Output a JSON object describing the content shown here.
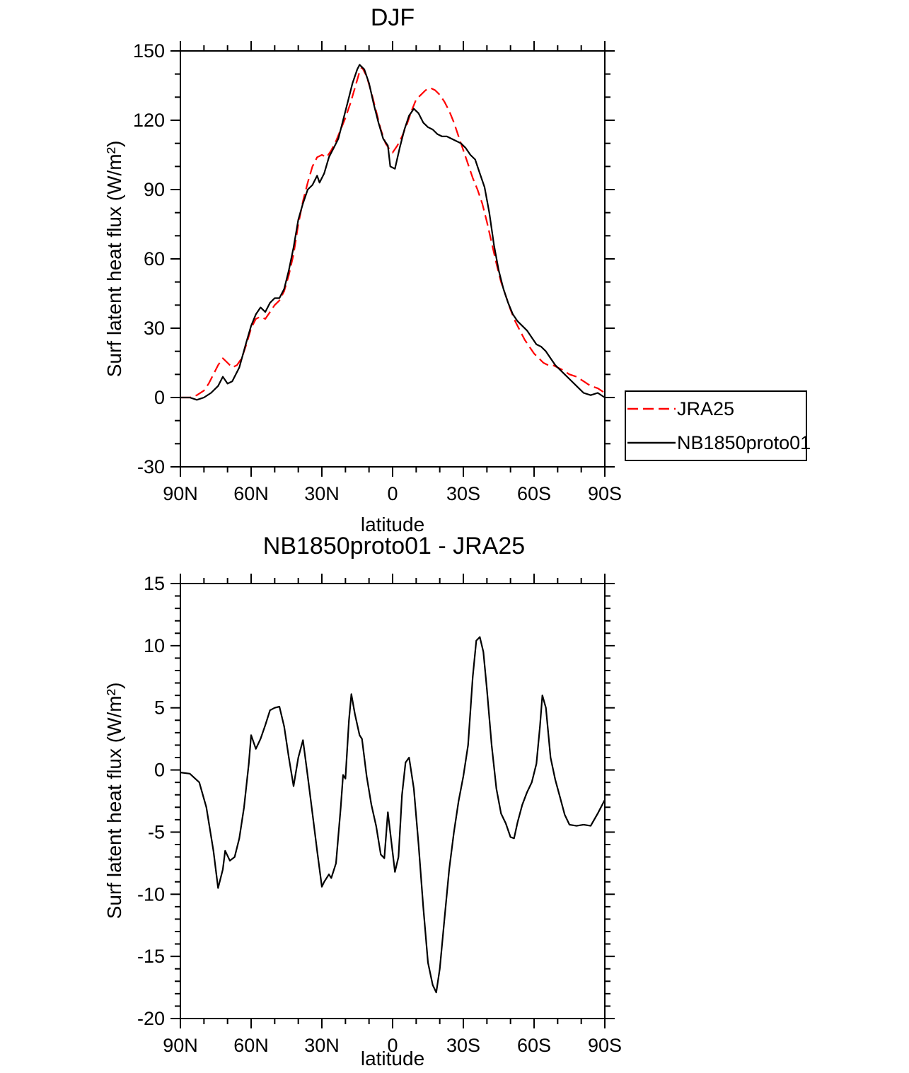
{
  "chart_data": [
    {
      "type": "line",
      "title": "DJF",
      "xlabel": "latitude",
      "ylabel": "Surf latent heat flux (W/m²)",
      "xlim": [
        90,
        -90
      ],
      "ylim": [
        -30,
        150
      ],
      "grid": false,
      "xticks": {
        "values": [
          90,
          60,
          30,
          0,
          -30,
          -60,
          -90
        ],
        "labels": [
          "90N",
          "60N",
          "30N",
          "0",
          "30S",
          "60S",
          "90S"
        ],
        "minor_step": 10
      },
      "yticks": {
        "values": [
          -30,
          0,
          30,
          60,
          90,
          120,
          150
        ],
        "labels": [
          "-30",
          "0",
          "30",
          "60",
          "90",
          "120",
          "150"
        ],
        "minor_step": 10
      },
      "legend": {
        "position": "outside-right-bottom",
        "entries": [
          "JRA25",
          "NB1850proto01"
        ]
      },
      "series": [
        {
          "name": "JRA25",
          "color": "#ff0000",
          "style": "dashed",
          "x": [
            90,
            86,
            83,
            80,
            78,
            76,
            74,
            72,
            70,
            68,
            66,
            64,
            62,
            60,
            58,
            56,
            54,
            52,
            50,
            48,
            46,
            44,
            42,
            40,
            38,
            36,
            34,
            32,
            30,
            28,
            26,
            24,
            22,
            20,
            18,
            16,
            14,
            13,
            11,
            9,
            7,
            5,
            3,
            1,
            0,
            -2,
            -4,
            -6,
            -8,
            -10,
            -12,
            -14,
            -16,
            -18,
            -20,
            -22,
            -24,
            -26,
            -28,
            -30,
            -32,
            -34,
            -36,
            -38,
            -40,
            -42,
            -44,
            -46,
            -48,
            -50,
            -52,
            -54,
            -56,
            -58,
            -60,
            -62,
            -64,
            -66,
            -68,
            -70,
            -72,
            -75,
            -78,
            -81,
            -84,
            -87,
            -90
          ],
          "y": [
            0,
            0,
            1,
            3,
            6,
            10,
            14,
            17,
            15,
            13,
            14,
            17,
            23,
            30,
            34,
            35,
            34,
            37,
            40,
            42,
            46,
            53,
            62,
            75,
            85,
            93,
            100,
            104,
            105,
            104,
            107,
            111,
            116,
            121,
            127,
            134,
            141,
            143,
            139,
            132,
            124,
            116,
            110,
            107,
            106,
            109,
            113,
            118,
            124,
            129,
            131,
            133,
            134,
            133,
            131,
            128,
            124,
            119,
            113,
            107,
            101,
            95,
            90,
            84,
            76,
            67,
            58,
            50,
            44,
            38,
            33,
            29,
            25,
            22,
            19,
            17,
            15,
            14,
            14,
            13,
            12,
            10,
            9,
            7,
            5,
            4,
            2
          ]
        },
        {
          "name": "NB1850proto01",
          "color": "#000000",
          "style": "solid",
          "x": [
            90,
            86,
            83,
            80,
            77,
            74,
            72,
            70,
            68,
            65,
            62,
            60,
            58,
            56,
            54,
            52,
            50,
            48,
            46,
            44,
            42,
            40,
            38,
            36,
            34,
            32,
            31,
            29,
            27,
            25,
            23,
            21,
            19,
            17,
            15,
            14,
            12,
            10,
            8,
            6,
            4,
            2,
            1,
            -1,
            -3,
            -5,
            -7,
            -9,
            -11,
            -13,
            -15,
            -17,
            -19,
            -21,
            -23,
            -25,
            -27,
            -29,
            -31,
            -33,
            -35,
            -37,
            -39,
            -41,
            -43,
            -45,
            -47,
            -49,
            -51,
            -53,
            -55,
            -57,
            -59,
            -61,
            -63,
            -65,
            -67,
            -69,
            -71,
            -73,
            -75,
            -78,
            -81,
            -84,
            -87,
            -90
          ],
          "y": [
            0,
            0,
            -1,
            0,
            2,
            5,
            9,
            6,
            7,
            13,
            24,
            31,
            36,
            39,
            37,
            41,
            43,
            43,
            47,
            55,
            65,
            77,
            84,
            90,
            92,
            96,
            93,
            97,
            104,
            108,
            112,
            120,
            128,
            136,
            142,
            144,
            142,
            136,
            127,
            119,
            112,
            109,
            100,
            99,
            108,
            116,
            122,
            125,
            123,
            119,
            117,
            116,
            114,
            113,
            113,
            112,
            111,
            110,
            108,
            105,
            103,
            97,
            91,
            80,
            66,
            55,
            47,
            41,
            36,
            33,
            31,
            29,
            26,
            23,
            22,
            20,
            17,
            14,
            12,
            10,
            8,
            5,
            2,
            1,
            2,
            0
          ]
        }
      ]
    },
    {
      "type": "line",
      "title": "NB1850proto01 - JRA25",
      "xlabel": "latitude",
      "ylabel": "Surf latent heat flux (W/m²)",
      "xlim": [
        90,
        -90
      ],
      "ylim": [
        -20,
        15
      ],
      "grid": false,
      "xticks": {
        "values": [
          90,
          60,
          30,
          0,
          -30,
          -60,
          -90
        ],
        "labels": [
          "90N",
          "60N",
          "30N",
          "0",
          "30S",
          "60S",
          "90S"
        ],
        "minor_step": 10
      },
      "yticks": {
        "values": [
          -20,
          -15,
          -10,
          -5,
          0,
          5,
          10,
          15
        ],
        "labels": [
          "-20",
          "-15",
          "-10",
          "-5",
          "0",
          "5",
          "10",
          "15"
        ],
        "minor_step": 1
      },
      "legend": {
        "position": "none",
        "entries": []
      },
      "series": [
        {
          "name": "NB1850proto01 - JRA25",
          "color": "#000000",
          "style": "solid",
          "x": [
            90,
            86,
            82,
            79,
            76,
            74,
            72,
            71,
            69,
            67,
            65,
            63,
            61,
            60,
            58,
            56,
            54,
            52,
            50,
            48,
            46,
            44,
            42,
            40,
            38,
            36,
            34,
            32,
            30,
            29,
            27,
            26,
            24,
            22,
            21,
            20,
            18.5,
            17.5,
            16,
            14,
            13,
            11,
            9,
            7,
            5,
            3.5,
            2,
            0.5,
            -1,
            -2.5,
            -4,
            -5.5,
            -7,
            -9,
            -11,
            -13,
            -15,
            -17,
            -18.5,
            -20,
            -22,
            -24,
            -26,
            -28,
            -30,
            -32,
            -34,
            -35.5,
            -37,
            -38.5,
            -40,
            -42,
            -44,
            -46,
            -48,
            -50,
            -51.5,
            -53,
            -55,
            -57,
            -59,
            -61,
            -62.5,
            -63.5,
            -65,
            -67,
            -69,
            -71,
            -73,
            -75,
            -78,
            -81,
            -84,
            -87,
            -90
          ],
          "y": [
            -0.2,
            -0.3,
            -1.0,
            -3.0,
            -6.5,
            -9.5,
            -8.0,
            -6.5,
            -7.3,
            -7.0,
            -5.5,
            -3.0,
            0.5,
            2.8,
            1.7,
            2.5,
            3.6,
            4.8,
            5.0,
            5.1,
            3.5,
            1.0,
            -1.3,
            1.0,
            2.4,
            -0.5,
            -3.5,
            -6.5,
            -9.4,
            -9.0,
            -8.4,
            -8.7,
            -7.5,
            -3.0,
            -0.4,
            -0.7,
            4.0,
            6.1,
            4.5,
            2.8,
            2.5,
            -0.5,
            -2.8,
            -4.5,
            -6.8,
            -7.1,
            -3.4,
            -5.8,
            -8.2,
            -7.0,
            -2.0,
            0.6,
            1.0,
            -1.5,
            -6.0,
            -11.0,
            -15.5,
            -17.3,
            -17.9,
            -16.0,
            -12.0,
            -8.0,
            -5.0,
            -2.5,
            -0.5,
            2.0,
            7.5,
            10.4,
            10.7,
            9.5,
            6.5,
            2.0,
            -1.5,
            -3.5,
            -4.3,
            -5.4,
            -5.5,
            -4.2,
            -2.8,
            -1.8,
            -1.0,
            0.5,
            3.5,
            6.0,
            5.0,
            1.0,
            -0.8,
            -2.2,
            -3.6,
            -4.4,
            -4.5,
            -4.4,
            -4.5,
            -3.5,
            -2.4
          ]
        }
      ]
    }
  ]
}
